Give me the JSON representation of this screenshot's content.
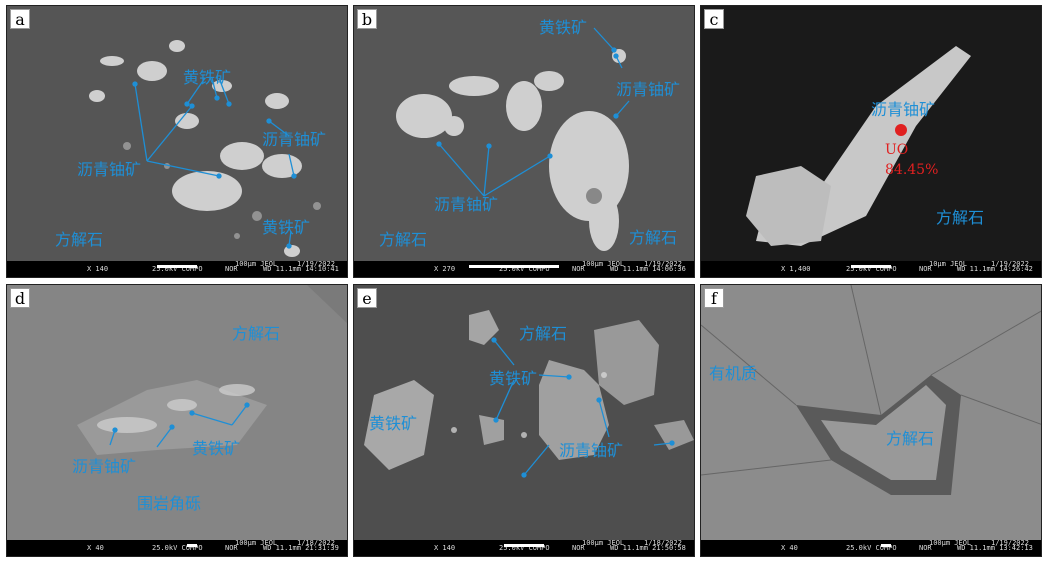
{
  "panels": [
    {
      "letter": "a",
      "labels": [
        "黄铁矿",
        "沥青铀矿",
        "沥青铀矿",
        "黄铁矿",
        "方解石"
      ],
      "footer": {
        "mag": "X 140",
        "kv": "25.0kV COMPO",
        "nor": "NOR",
        "scale": "100μm JEOL",
        "wd": "WD 11.1mm 14:10:41",
        "date": "1/19/2022"
      }
    },
    {
      "letter": "b",
      "labels": [
        "黄铁矿",
        "沥青铀矿",
        "沥青铀矿",
        "方解石",
        "方解石"
      ],
      "footer": {
        "mag": "X 270",
        "kv": "25.0kV COMPO",
        "nor": "NOR",
        "scale": "100μm JEOL",
        "wd": "WD 11.1mm 14:06:36",
        "date": "1/19/2022"
      }
    },
    {
      "letter": "c",
      "labels": [
        "沥青铀矿",
        "方解石"
      ],
      "spot": {
        "label": "UO",
        "value": "84.45%"
      },
      "footer": {
        "mag": "X 1,400",
        "kv": "25.0kV COMPO",
        "nor": "NOR",
        "scale": "10μm JEOL",
        "wd": "WD 11.1mm 14:26:42",
        "date": "1/19/2022"
      }
    },
    {
      "letter": "d",
      "labels": [
        "方解石",
        "沥青铀矿",
        "黄铁矿",
        "围岩角砾"
      ],
      "footer": {
        "mag": "X 40",
        "kv": "25.0kV COMPO",
        "nor": "NOR",
        "scale": "100μm JEOL",
        "wd": "WD 11.1mm 21:31:39",
        "date": "1/18/2022"
      }
    },
    {
      "letter": "e",
      "labels": [
        "方解石",
        "黄铁矿",
        "黄铁矿",
        "沥青铀矿"
      ],
      "footer": {
        "mag": "X 140",
        "kv": "25.0kV COMPO",
        "nor": "NOR",
        "scale": "100μm JEOL",
        "wd": "WD 11.1mm 21:50:58",
        "date": "1/18/2022"
      }
    },
    {
      "letter": "f",
      "labels": [
        "有机质",
        "方解石"
      ],
      "footer": {
        "mag": "X 40",
        "kv": "25.0kV COMPO",
        "nor": "NOR",
        "scale": "100μm JEOL",
        "wd": "WD 11.1mm 13:42:13",
        "date": "1/19/2022"
      }
    }
  ],
  "colors": {
    "label": "#1e8fd6",
    "spot": "#e02020"
  }
}
